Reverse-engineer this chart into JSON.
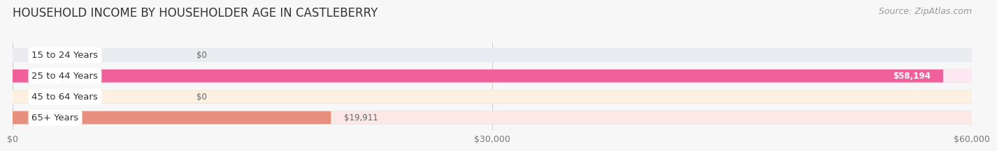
{
  "title": "HOUSEHOLD INCOME BY HOUSEHOLDER AGE IN CASTLEBERRY",
  "source": "Source: ZipAtlas.com",
  "categories": [
    "15 to 24 Years",
    "25 to 44 Years",
    "45 to 64 Years",
    "65+ Years"
  ],
  "values": [
    0,
    58194,
    0,
    19911
  ],
  "bar_colors": [
    "#b0b0d8",
    "#f0609a",
    "#f0c080",
    "#e89080"
  ],
  "bar_bg_colors": [
    "#ebebf2",
    "#fce8f0",
    "#fdf0e0",
    "#fce8e4"
  ],
  "value_labels": [
    "$0",
    "$58,194",
    "$0",
    "$19,911"
  ],
  "xlim": [
    0,
    60000
  ],
  "xtick_values": [
    0,
    30000,
    60000
  ],
  "xtick_labels": [
    "$0",
    "$30,000",
    "$60,000"
  ],
  "title_fontsize": 12,
  "source_fontsize": 9,
  "label_fontsize": 9.5,
  "value_fontsize": 8.5,
  "background_color": "#f7f7f7",
  "bar_bg_outer_color": "#e2e2e8"
}
